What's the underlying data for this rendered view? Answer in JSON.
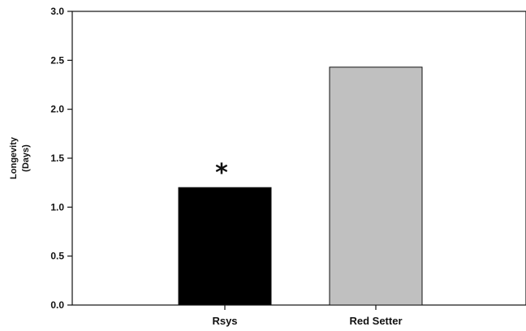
{
  "chart_data": {
    "type": "bar",
    "title": "",
    "xlabel": "",
    "ylabel_lines": [
      "Longevity",
      "(Days)"
    ],
    "categories": [
      "Rsys",
      "Red Setter"
    ],
    "values": [
      1.2,
      2.43
    ],
    "bar_colors": [
      "#000000",
      "#c0c0c0"
    ],
    "annotations": [
      {
        "category": "Rsys",
        "text": "*"
      }
    ],
    "ylim": [
      0,
      3.0
    ],
    "yticks": [
      "0.0",
      "0.5",
      "1.0",
      "1.5",
      "2.0",
      "2.5",
      "3.0"
    ],
    "grid": false,
    "legend": "none"
  }
}
